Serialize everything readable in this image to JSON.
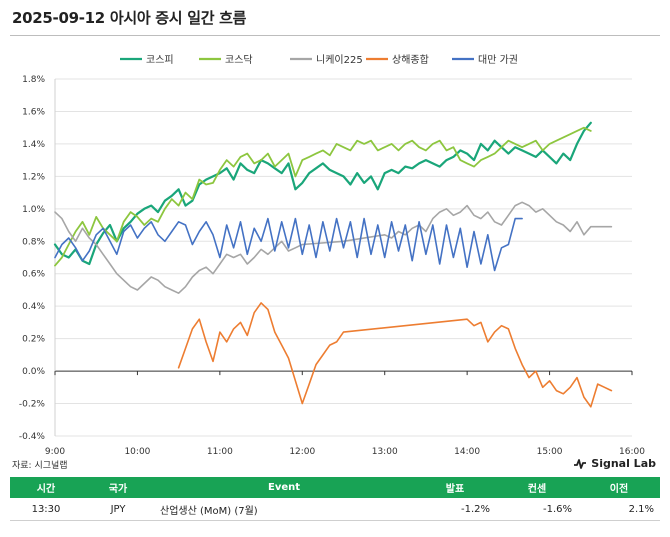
{
  "title": "2025-09-12 아시아 증시 일간 흐름",
  "source": "자료: 시그널랩",
  "brand": "Signal Lab",
  "colors": {
    "kospi": "#1aa67a",
    "kosdaq": "#8dc63f",
    "nikkei": "#a6a6a6",
    "shanghai": "#ed7d31",
    "taiwan": "#4472c4",
    "table_header": "#18a355"
  },
  "chart_data": {
    "type": "line",
    "title": "",
    "xlabel": "",
    "ylabel": "",
    "x_ticks": [
      "9:00",
      "10:00",
      "11:00",
      "12:00",
      "13:00",
      "14:00",
      "15:00",
      "16:00"
    ],
    "y_ticks": [
      "1.8%",
      "1.6%",
      "1.4%",
      "1.2%",
      "1.0%",
      "0.8%",
      "0.6%",
      "0.4%",
      "0.2%",
      "0.0%",
      "-0.2%",
      "-0.4%"
    ],
    "ylim": [
      -0.4,
      1.8
    ],
    "xlim": [
      "9:00",
      "16:00"
    ],
    "grid": "horizontal",
    "zero_line": true,
    "legend_position": "top",
    "series": [
      {
        "name": "코스피",
        "color_key": "kospi",
        "width": 2.2,
        "x": [
          "9:00",
          "9:05",
          "9:10",
          "9:15",
          "9:20",
          "9:25",
          "9:30",
          "9:35",
          "9:40",
          "9:45",
          "9:50",
          "9:55",
          "10:00",
          "10:05",
          "10:10",
          "10:15",
          "10:20",
          "10:25",
          "10:30",
          "10:35",
          "10:40",
          "10:45",
          "10:50",
          "10:55",
          "11:00",
          "11:05",
          "11:10",
          "11:15",
          "11:20",
          "11:25",
          "11:30",
          "11:35",
          "11:40",
          "11:45",
          "11:50",
          "11:55",
          "12:00",
          "12:05",
          "12:10",
          "12:15",
          "12:20",
          "12:25",
          "12:30",
          "12:35",
          "12:40",
          "12:45",
          "12:50",
          "12:55",
          "13:00",
          "13:05",
          "13:10",
          "13:15",
          "13:20",
          "13:25",
          "13:30",
          "13:35",
          "13:40",
          "13:45",
          "13:50",
          "13:55",
          "14:00",
          "14:05",
          "14:10",
          "14:15",
          "14:20",
          "14:25",
          "14:30",
          "14:35",
          "14:40",
          "14:45",
          "14:50",
          "14:55",
          "15:00",
          "15:05",
          "15:10",
          "15:15",
          "15:20",
          "15:25",
          "15:30"
        ],
        "y": [
          0.78,
          0.72,
          0.7,
          0.75,
          0.68,
          0.66,
          0.78,
          0.85,
          0.9,
          0.8,
          0.88,
          0.92,
          0.97,
          1.0,
          1.02,
          0.98,
          1.05,
          1.08,
          1.12,
          1.02,
          1.05,
          1.15,
          1.18,
          1.2,
          1.22,
          1.25,
          1.18,
          1.28,
          1.24,
          1.22,
          1.3,
          1.28,
          1.25,
          1.22,
          1.28,
          1.12,
          1.16,
          1.22,
          1.25,
          1.28,
          1.24,
          1.22,
          1.2,
          1.15,
          1.22,
          1.16,
          1.2,
          1.12,
          1.22,
          1.24,
          1.22,
          1.26,
          1.25,
          1.28,
          1.3,
          1.28,
          1.26,
          1.3,
          1.32,
          1.36,
          1.34,
          1.3,
          1.4,
          1.36,
          1.42,
          1.38,
          1.34,
          1.38,
          1.36,
          1.34,
          1.32,
          1.36,
          1.32,
          1.28,
          1.34,
          1.3,
          1.4,
          1.48,
          1.53
        ]
      },
      {
        "name": "코스닥",
        "color_key": "kosdaq",
        "width": 1.8,
        "x": [
          "9:00",
          "9:05",
          "9:10",
          "9:15",
          "9:20",
          "9:25",
          "9:30",
          "9:35",
          "9:40",
          "9:45",
          "9:50",
          "9:55",
          "10:00",
          "10:05",
          "10:10",
          "10:15",
          "10:20",
          "10:25",
          "10:30",
          "10:35",
          "10:40",
          "10:45",
          "10:50",
          "10:55",
          "11:00",
          "11:05",
          "11:10",
          "11:15",
          "11:20",
          "11:25",
          "11:30",
          "11:35",
          "11:40",
          "11:45",
          "11:50",
          "11:55",
          "12:00",
          "12:05",
          "12:10",
          "12:15",
          "12:20",
          "12:25",
          "12:30",
          "12:35",
          "12:40",
          "12:45",
          "12:50",
          "12:55",
          "13:00",
          "13:05",
          "13:10",
          "13:15",
          "13:20",
          "13:25",
          "13:30",
          "13:35",
          "13:40",
          "13:45",
          "13:50",
          "13:55",
          "14:00",
          "14:05",
          "14:10",
          "14:15",
          "14:20",
          "14:25",
          "14:30",
          "14:35",
          "14:40",
          "14:45",
          "14:50",
          "14:55",
          "15:00",
          "15:05",
          "15:10",
          "15:15",
          "15:20",
          "15:25",
          "15:30"
        ],
        "y": [
          0.65,
          0.7,
          0.78,
          0.86,
          0.92,
          0.84,
          0.95,
          0.88,
          0.84,
          0.8,
          0.92,
          0.98,
          0.95,
          0.9,
          0.94,
          0.92,
          1.0,
          1.06,
          1.02,
          1.1,
          1.06,
          1.18,
          1.15,
          1.16,
          1.24,
          1.3,
          1.26,
          1.32,
          1.34,
          1.28,
          1.3,
          1.34,
          1.26,
          1.3,
          1.34,
          1.2,
          1.3,
          1.32,
          1.34,
          1.36,
          1.33,
          1.4,
          1.38,
          1.36,
          1.42,
          1.4,
          1.42,
          1.36,
          1.38,
          1.4,
          1.36,
          1.4,
          1.42,
          1.38,
          1.36,
          1.4,
          1.42,
          1.36,
          1.38,
          1.3,
          1.28,
          1.26,
          1.3,
          1.32,
          1.34,
          1.38,
          1.42,
          1.4,
          1.38,
          1.4,
          1.42,
          1.36,
          1.4,
          1.42,
          1.44,
          1.46,
          1.48,
          1.5,
          1.48
        ]
      },
      {
        "name": "니케이225",
        "color_key": "nikkei",
        "width": 1.6,
        "x": [
          "9:00",
          "9:05",
          "9:10",
          "9:15",
          "9:20",
          "9:25",
          "9:30",
          "9:35",
          "9:40",
          "9:45",
          "9:50",
          "9:55",
          "10:00",
          "10:05",
          "10:10",
          "10:15",
          "10:20",
          "10:25",
          "10:30",
          "10:35",
          "10:40",
          "10:45",
          "10:50",
          "10:55",
          "11:00",
          "11:05",
          "11:10",
          "11:15",
          "11:20",
          "11:25",
          "11:30",
          "11:35",
          "11:40",
          "11:45",
          "11:50",
          "11:55",
          "12:00",
          "12:30",
          "13:00",
          "13:05",
          "13:10",
          "13:15",
          "13:20",
          "13:25",
          "13:30",
          "13:35",
          "13:40",
          "13:45",
          "13:50",
          "13:55",
          "14:00",
          "14:05",
          "14:10",
          "14:15",
          "14:20",
          "14:25",
          "14:30",
          "14:35",
          "14:40",
          "14:45",
          "14:50",
          "14:55",
          "15:00",
          "15:05",
          "15:10",
          "15:15",
          "15:20",
          "15:25",
          "15:30",
          "15:45"
        ],
        "y": [
          0.98,
          0.94,
          0.86,
          0.8,
          0.88,
          0.82,
          0.78,
          0.72,
          0.66,
          0.6,
          0.56,
          0.52,
          0.5,
          0.54,
          0.58,
          0.56,
          0.52,
          0.5,
          0.48,
          0.52,
          0.58,
          0.62,
          0.64,
          0.6,
          0.66,
          0.72,
          0.7,
          0.72,
          0.66,
          0.7,
          0.75,
          0.72,
          0.76,
          0.8,
          0.74,
          0.76,
          0.78,
          0.8,
          0.84,
          0.82,
          0.86,
          0.84,
          0.88,
          0.9,
          0.86,
          0.94,
          0.98,
          1.0,
          0.96,
          0.98,
          1.02,
          0.96,
          0.94,
          0.98,
          0.92,
          0.9,
          0.96,
          1.02,
          1.04,
          1.02,
          0.98,
          1.0,
          0.96,
          0.92,
          0.9,
          0.86,
          0.92,
          0.84,
          0.89,
          0.89
        ]
      },
      {
        "name": "상해종합",
        "color_key": "shanghai",
        "width": 1.6,
        "x": [
          "10:30",
          "10:35",
          "10:40",
          "10:45",
          "10:50",
          "10:55",
          "11:00",
          "11:05",
          "11:10",
          "11:15",
          "11:20",
          "11:25",
          "11:30",
          "11:35",
          "11:40",
          "11:45",
          "11:50",
          "11:55",
          "12:00",
          "12:05",
          "12:10",
          "12:15",
          "12:20",
          "12:25",
          "12:30",
          "14:00",
          "14:05",
          "14:10",
          "14:15",
          "14:20",
          "14:25",
          "14:30",
          "14:35",
          "14:40",
          "14:45",
          "14:50",
          "14:55",
          "15:00",
          "15:05",
          "15:10",
          "15:15",
          "15:20",
          "15:25",
          "15:30",
          "15:35",
          "15:40",
          "15:45"
        ],
        "y": [
          0.02,
          0.14,
          0.26,
          0.32,
          0.18,
          0.06,
          0.24,
          0.18,
          0.26,
          0.3,
          0.22,
          0.36,
          0.42,
          0.38,
          0.24,
          0.16,
          0.08,
          -0.06,
          -0.2,
          -0.08,
          0.04,
          0.1,
          0.16,
          0.18,
          0.24,
          0.32,
          0.28,
          0.3,
          0.18,
          0.24,
          0.28,
          0.26,
          0.14,
          0.04,
          -0.04,
          0.0,
          -0.1,
          -0.06,
          -0.12,
          -0.14,
          -0.1,
          -0.04,
          -0.16,
          -0.22,
          -0.08,
          -0.1,
          -0.12
        ]
      },
      {
        "name": "대만 가권",
        "color_key": "taiwan",
        "width": 1.6,
        "x": [
          "9:00",
          "9:05",
          "9:10",
          "9:15",
          "9:20",
          "9:25",
          "9:30",
          "9:35",
          "9:40",
          "9:45",
          "9:50",
          "9:55",
          "10:00",
          "10:05",
          "10:10",
          "10:15",
          "10:20",
          "10:25",
          "10:30",
          "10:35",
          "10:40",
          "10:45",
          "10:50",
          "10:55",
          "11:00",
          "11:05",
          "11:10",
          "11:15",
          "11:20",
          "11:25",
          "11:30",
          "11:35",
          "11:40",
          "11:45",
          "11:50",
          "11:55",
          "12:00",
          "12:05",
          "12:10",
          "12:15",
          "12:20",
          "12:25",
          "12:30",
          "12:35",
          "12:40",
          "12:45",
          "12:50",
          "12:55",
          "13:00",
          "13:05",
          "13:10",
          "13:15",
          "13:20",
          "13:25",
          "13:30",
          "13:35",
          "13:40",
          "13:45",
          "13:50",
          "13:55",
          "14:00",
          "14:05",
          "14:10",
          "14:15",
          "14:20",
          "14:25",
          "14:30",
          "14:35",
          "14:40"
        ],
        "y": [
          0.7,
          0.78,
          0.82,
          0.76,
          0.68,
          0.74,
          0.84,
          0.88,
          0.8,
          0.72,
          0.86,
          0.9,
          0.82,
          0.88,
          0.92,
          0.84,
          0.8,
          0.86,
          0.92,
          0.9,
          0.78,
          0.86,
          0.92,
          0.84,
          0.7,
          0.9,
          0.76,
          0.92,
          0.72,
          0.88,
          0.8,
          0.94,
          0.74,
          0.92,
          0.76,
          0.94,
          0.72,
          0.9,
          0.7,
          0.92,
          0.74,
          0.94,
          0.76,
          0.92,
          0.7,
          0.94,
          0.72,
          0.9,
          0.7,
          0.92,
          0.74,
          0.9,
          0.68,
          0.92,
          0.72,
          0.9,
          0.66,
          0.9,
          0.7,
          0.88,
          0.64,
          0.86,
          0.66,
          0.84,
          0.62,
          0.76,
          0.78,
          0.94,
          0.94
        ]
      }
    ]
  },
  "table": {
    "headers": {
      "time": "시간",
      "country": "국가",
      "event": "Event",
      "actual": "발표",
      "consensus": "컨센",
      "previous": "이전"
    },
    "rows": [
      {
        "time": "13:30",
        "country": "JPY",
        "event": "산업생산 (MoM) (7월)",
        "actual": "-1.2%",
        "consensus": "-1.6%",
        "previous": "2.1%"
      }
    ]
  }
}
